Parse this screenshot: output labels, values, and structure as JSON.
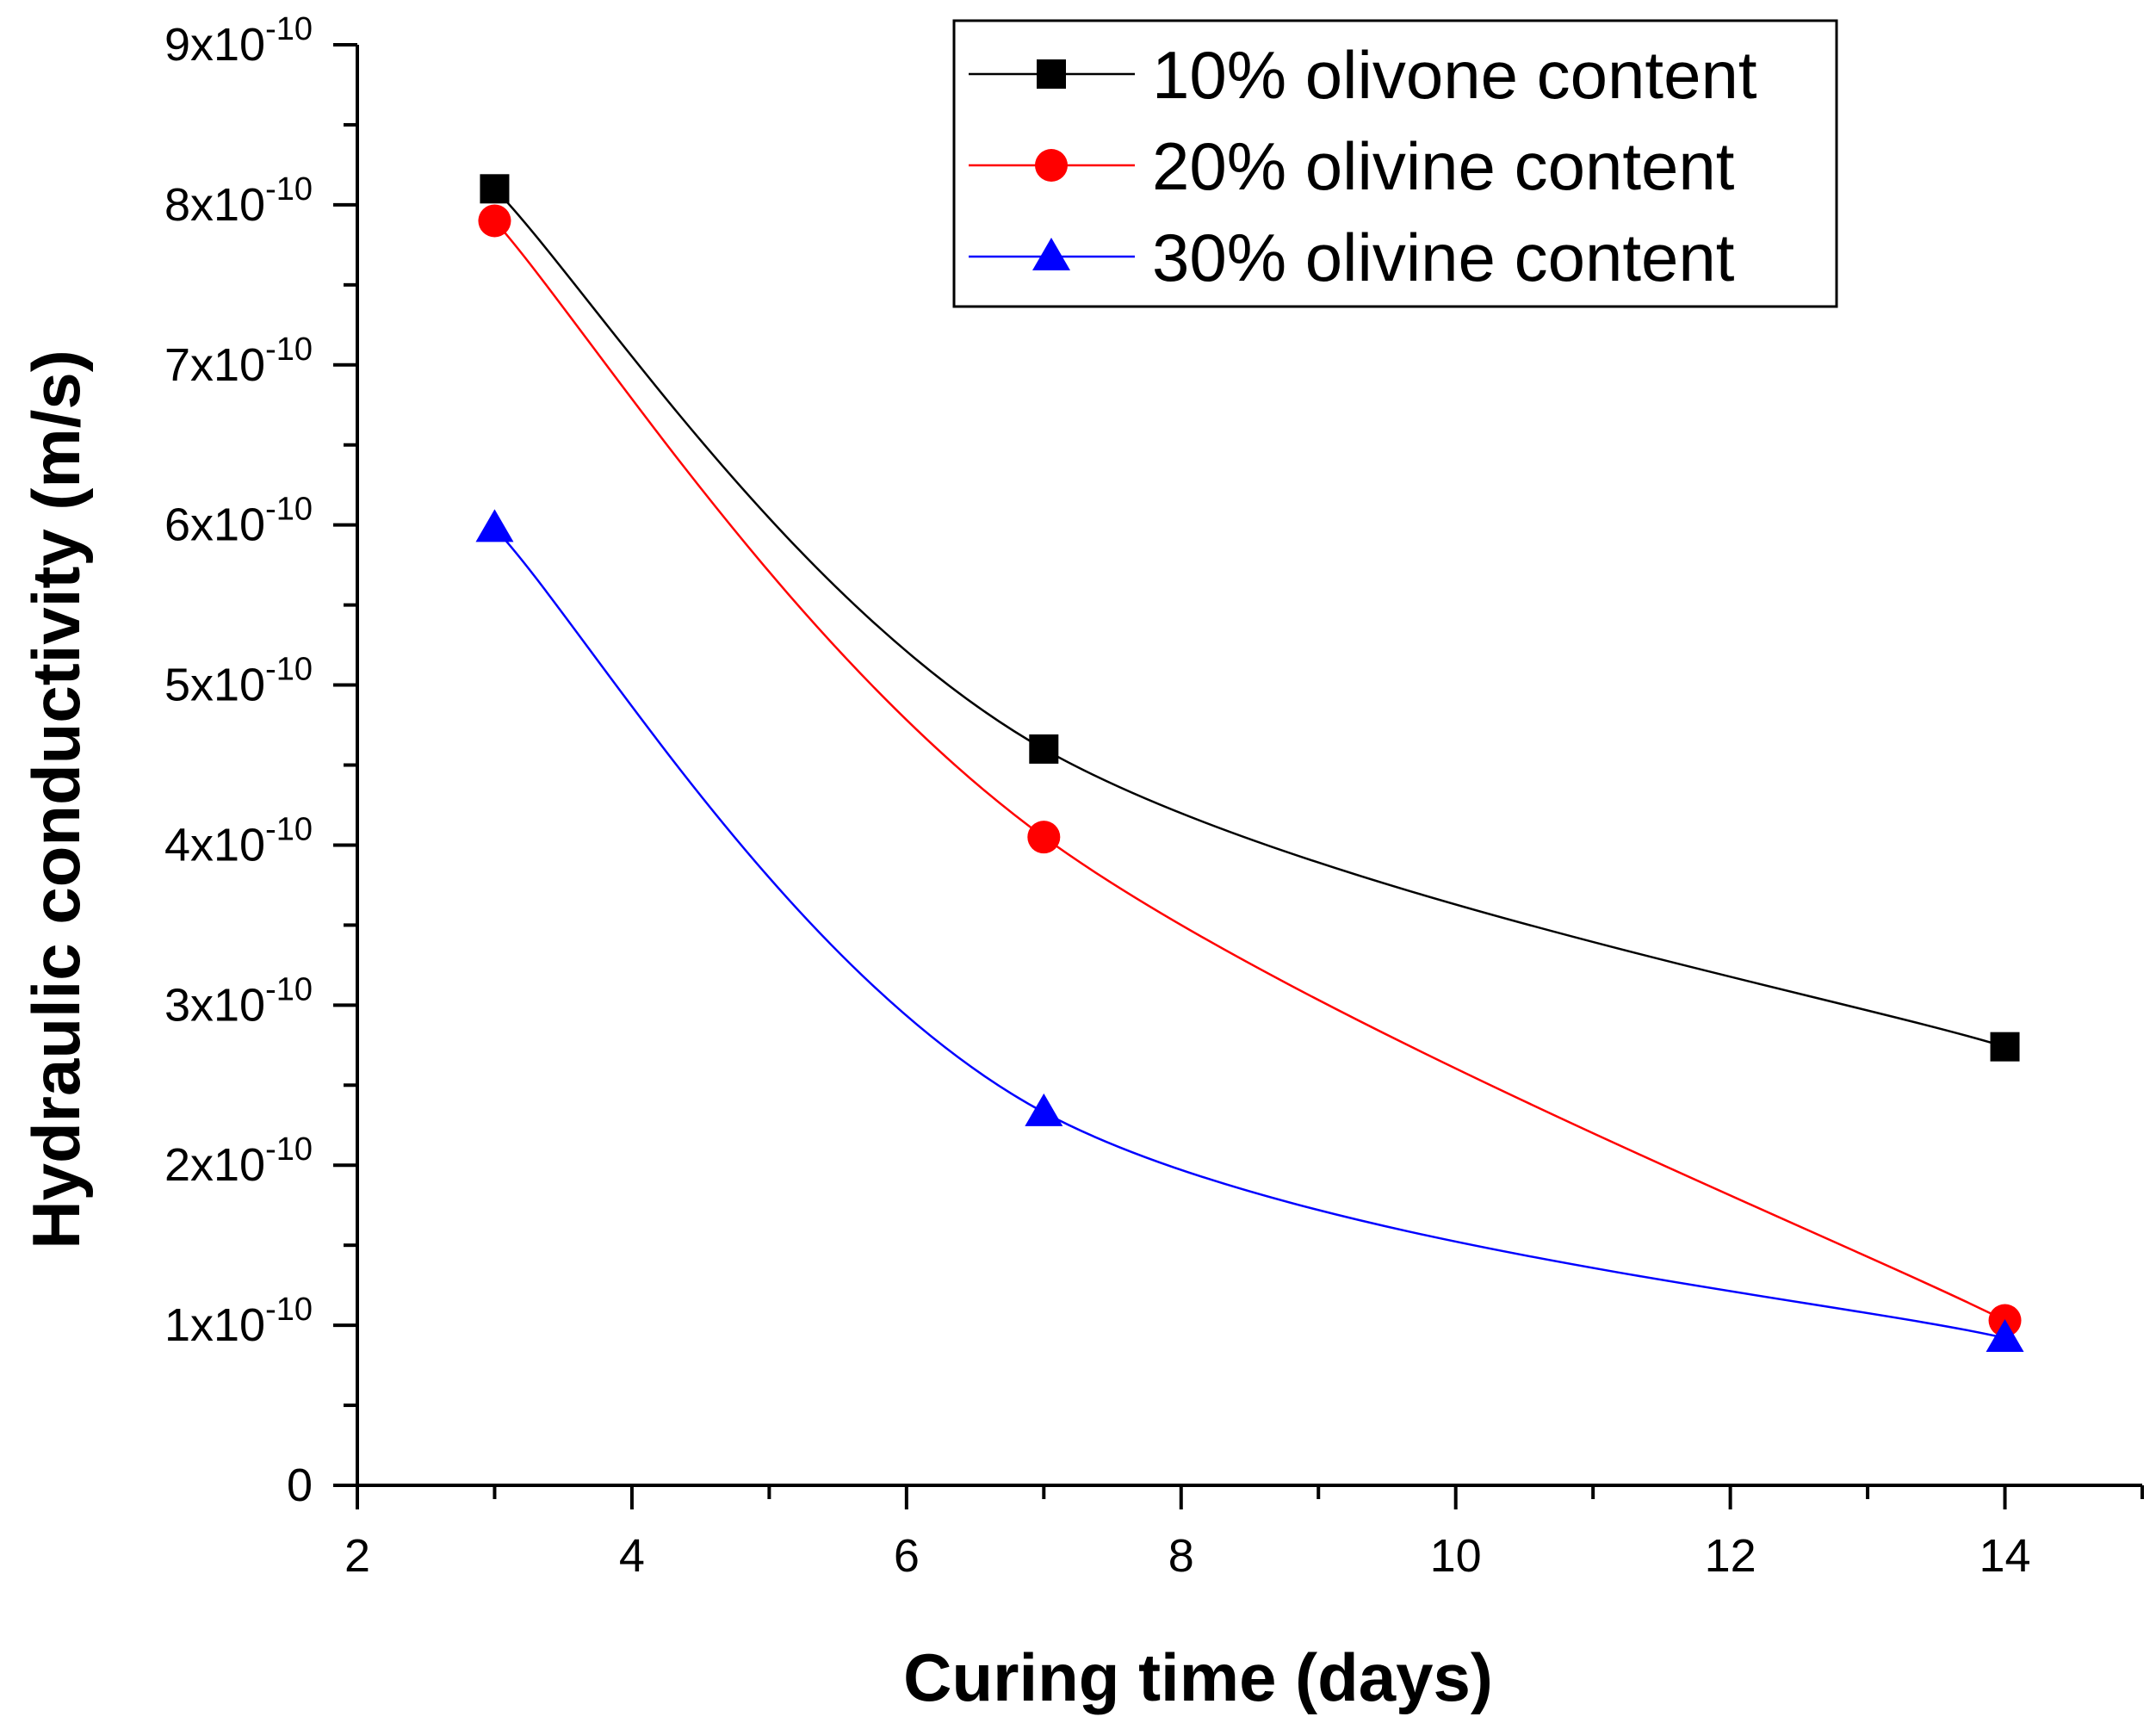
{
  "chart_data": {
    "type": "line",
    "title": "",
    "xlabel": "Curing time (days)",
    "ylabel": "Hydraulic conductivity (m/s)",
    "xlim": [
      2,
      15
    ],
    "ylim": [
      0,
      9e-10
    ],
    "grid": false,
    "legend_position": "top-right",
    "x_ticks": [
      {
        "value": 2,
        "label": "2"
      },
      {
        "value": 4,
        "label": "4"
      },
      {
        "value": 6,
        "label": "6"
      },
      {
        "value": 8,
        "label": "8"
      },
      {
        "value": 10,
        "label": "10"
      },
      {
        "value": 12,
        "label": "12"
      },
      {
        "value": 14,
        "label": "14"
      }
    ],
    "y_ticks": [
      {
        "value": 0,
        "label": "0"
      },
      {
        "value": 1e-10,
        "label": "1x10",
        "exp": "-10"
      },
      {
        "value": 2e-10,
        "label": "2x10",
        "exp": "-10"
      },
      {
        "value": 3e-10,
        "label": "3x10",
        "exp": "-10"
      },
      {
        "value": 4e-10,
        "label": "4x10",
        "exp": "-10"
      },
      {
        "value": 5e-10,
        "label": "5x10",
        "exp": "-10"
      },
      {
        "value": 6e-10,
        "label": "6x10",
        "exp": "-10"
      },
      {
        "value": 7e-10,
        "label": "7x10",
        "exp": "-10"
      },
      {
        "value": 8e-10,
        "label": "8x10",
        "exp": "-10"
      },
      {
        "value": 9e-10,
        "label": "9x10",
        "exp": "-10"
      }
    ],
    "x": [
      3,
      7,
      14
    ],
    "series": [
      {
        "name": "10% olivone content",
        "color": "#000000",
        "marker": "square",
        "values": [
          8.1e-10,
          4.6e-10,
          2.74e-10
        ]
      },
      {
        "name": "20% olivine content",
        "color": "#ff0000",
        "marker": "circle",
        "values": [
          7.9e-10,
          4.05e-10,
          1.03e-10
        ]
      },
      {
        "name": "30% olivine content",
        "color": "#0000ff",
        "marker": "triangle",
        "values": [
          5.98e-10,
          2.33e-10,
          9.2e-11
        ]
      }
    ]
  }
}
